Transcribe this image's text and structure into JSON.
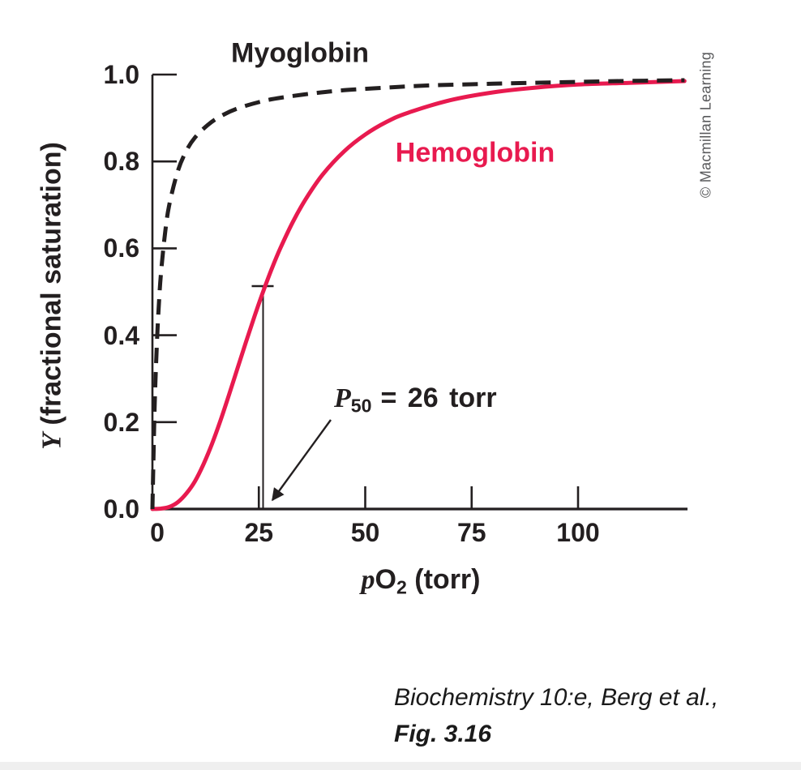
{
  "page": {
    "background": "#ffffff",
    "bottom_strip_color": "#efefef"
  },
  "colors": {
    "ink": "#231f20",
    "hemoglobin_red": "#e81a4f",
    "credit_gray": "#58595b"
  },
  "credit": {
    "text": "© Macmillan Learning"
  },
  "citation": {
    "line1": "Biochemistry 10:e, Berg et al.,",
    "line2": "Fig. 3.16"
  },
  "chart_data": {
    "type": "line",
    "title": "",
    "xlabel": {
      "pre_italic": "p",
      "element": "O",
      "subscript": "2",
      "suffix": " (torr)"
    },
    "ylabel": {
      "italic_symbol": "Y",
      "rest": " (fractional saturation)"
    },
    "xlim": [
      0,
      125
    ],
    "ylim": [
      0,
      1.0
    ],
    "grid": false,
    "legend_position": "inline-curve-labels",
    "x_ticks": [
      {
        "value": 0,
        "label": "0"
      },
      {
        "value": 25,
        "label": "25"
      },
      {
        "value": 50,
        "label": "50"
      },
      {
        "value": 75,
        "label": "75"
      },
      {
        "value": 100,
        "label": "100"
      }
    ],
    "y_ticks": [
      {
        "value": 0.0,
        "label": "0.0"
      },
      {
        "value": 0.2,
        "label": "0.2"
      },
      {
        "value": 0.4,
        "label": "0.4"
      },
      {
        "value": 0.6,
        "label": "0.6"
      },
      {
        "value": 0.8,
        "label": "0.8"
      },
      {
        "value": 1.0,
        "label": "1.0"
      }
    ],
    "series": [
      {
        "name": "Hemoglobin",
        "style": "solid",
        "color": "#e81a4f",
        "points": [
          [
            0,
            0
          ],
          [
            2,
            0.001
          ],
          [
            4,
            0.005
          ],
          [
            6,
            0.016
          ],
          [
            8,
            0.036
          ],
          [
            10,
            0.064
          ],
          [
            12,
            0.103
          ],
          [
            14,
            0.15
          ],
          [
            16,
            0.204
          ],
          [
            18,
            0.263
          ],
          [
            20,
            0.324
          ],
          [
            22,
            0.385
          ],
          [
            24,
            0.444
          ],
          [
            26,
            0.5
          ],
          [
            28,
            0.552
          ],
          [
            30,
            0.599
          ],
          [
            33,
            0.661
          ],
          [
            36,
            0.713
          ],
          [
            40,
            0.77
          ],
          [
            45,
            0.823
          ],
          [
            50,
            0.862
          ],
          [
            55,
            0.891
          ],
          [
            60,
            0.912
          ],
          [
            70,
            0.941
          ],
          [
            80,
            0.959
          ],
          [
            90,
            0.97
          ],
          [
            100,
            0.977
          ],
          [
            112,
            0.981
          ],
          [
            125,
            0.985
          ]
        ]
      },
      {
        "name": "Myoglobin",
        "style": "dashed",
        "color": "#231f20",
        "points": [
          [
            0,
            0
          ],
          [
            0.5,
            0.227
          ],
          [
            1,
            0.37
          ],
          [
            1.5,
            0.469
          ],
          [
            2,
            0.541
          ],
          [
            3,
            0.638
          ],
          [
            4,
            0.702
          ],
          [
            6,
            0.779
          ],
          [
            8,
            0.825
          ],
          [
            10,
            0.855
          ],
          [
            13,
            0.884
          ],
          [
            16,
            0.904
          ],
          [
            20,
            0.922
          ],
          [
            26,
            0.939
          ],
          [
            31,
            0.948
          ],
          [
            38,
            0.957
          ],
          [
            45,
            0.964
          ],
          [
            55,
            0.97
          ],
          [
            65,
            0.975
          ],
          [
            80,
            0.979
          ],
          [
            95,
            0.982
          ],
          [
            110,
            0.985
          ],
          [
            125,
            0.987
          ]
        ]
      }
    ],
    "p50_annotation": {
      "symbol": "P",
      "subscript": "50",
      "equals_value": "= 26 torr",
      "value_torr": 26,
      "y_fraction": 0.5
    }
  }
}
